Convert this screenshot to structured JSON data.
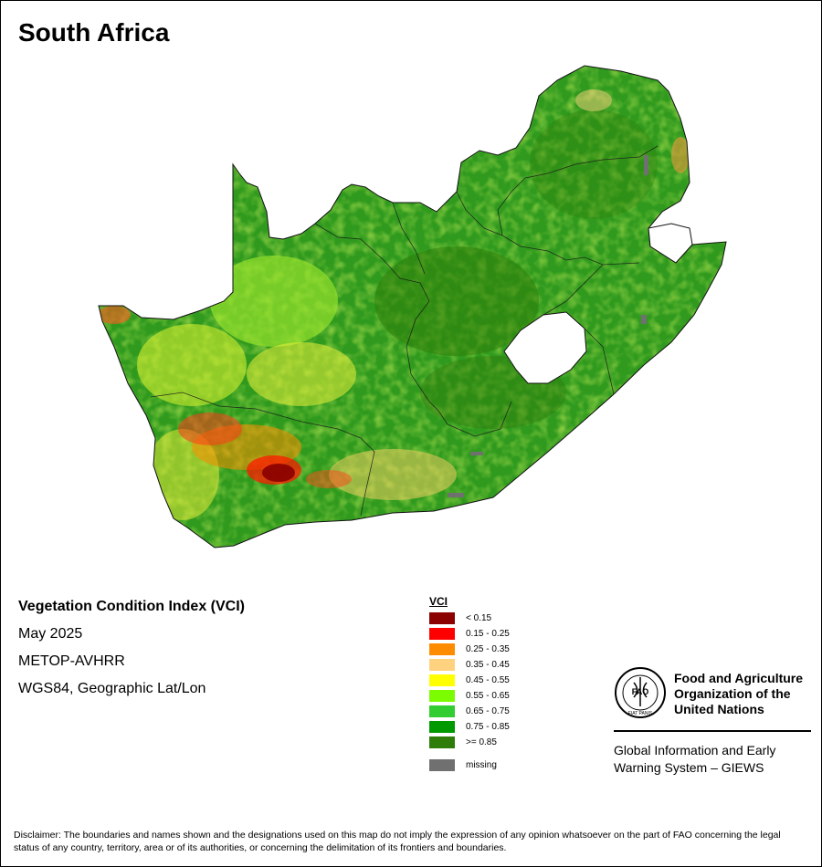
{
  "map": {
    "title": "South Africa",
    "colors": {
      "background_land": "#2f9a1e",
      "lesotho": "#ffffff",
      "border": "#000000"
    }
  },
  "info": {
    "index_name": "Vegetation Condition Index (VCI)",
    "period": "May 2025",
    "sensor": "METOP-AVHRR",
    "projection": "WGS84, Geographic Lat/Lon"
  },
  "legend": {
    "title": "VCI",
    "classes": [
      {
        "label": "< 0.15",
        "color": "#8b0000"
      },
      {
        "label": "0.15 - 0.25",
        "color": "#ff0000"
      },
      {
        "label": "0.25 - 0.35",
        "color": "#ff8c00"
      },
      {
        "label": "0.35 - 0.45",
        "color": "#ffd27f"
      },
      {
        "label": "0.45 - 0.55",
        "color": "#ffff00"
      },
      {
        "label": "0.55 - 0.65",
        "color": "#7cfc00"
      },
      {
        "label": "0.65 - 0.75",
        "color": "#32cd32"
      },
      {
        "label": "0.75 - 0.85",
        "color": "#009900"
      },
      {
        "label": ">= 0.85",
        "color": "#2e7d0a"
      }
    ],
    "missing": {
      "label": "missing",
      "color": "#707070"
    }
  },
  "organization": {
    "logo_icon": "fao-logo-icon",
    "logo_text": "FAO",
    "logo_motto": "FIAT PANIS",
    "name_line1": "Food and Agriculture",
    "name_line2": "Organization of the",
    "name_line3": "United Nations",
    "system_line1": "Global Information and Early",
    "system_line2": "Warning System – GIEWS"
  },
  "disclaimer": "Disclaimer: The boundaries and names shown and the designations used on this map do not imply the expression of any opinion whatsoever on the part of FAO concerning the legal status of any country, territory, area or of its authorities, or concerning the delimitation of its frontiers and boundaries."
}
